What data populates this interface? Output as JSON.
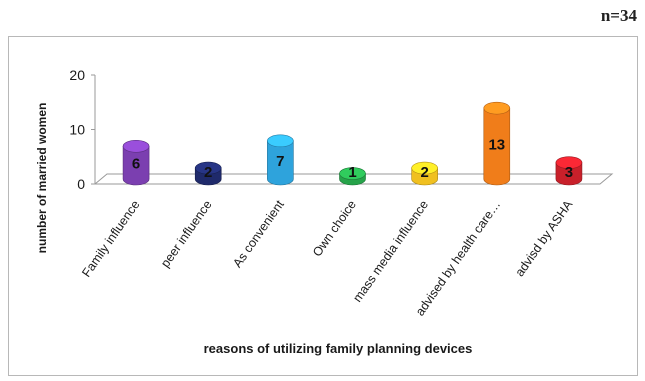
{
  "header": {
    "sample_size": "n=34"
  },
  "chart_data": {
    "type": "bar",
    "title": "",
    "xlabel": "reasons of utilizing family planning devices",
    "ylabel": "number of married women",
    "ylim": [
      0,
      20
    ],
    "yticks": [
      0,
      10,
      20
    ],
    "grid": false,
    "legend": "none",
    "categories": [
      "Family  influence",
      "peer influence",
      "As convenient",
      "Own choice",
      "mass media influence",
      "advised by health care…",
      "advisd by ASHA"
    ],
    "values": [
      6,
      2,
      7,
      1,
      2,
      13,
      3
    ],
    "colors": [
      "#7b3fb0",
      "#1f2a6b",
      "#2ea3dc",
      "#26a34a",
      "#f0c020",
      "#f07d1a",
      "#c8202a"
    ]
  }
}
